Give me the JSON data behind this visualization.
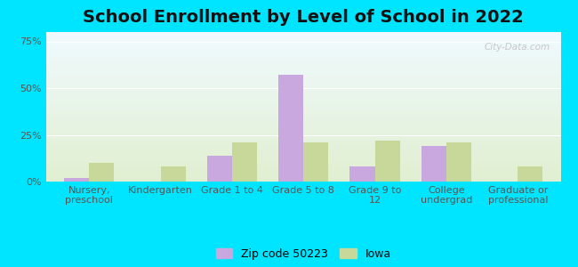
{
  "title": "School Enrollment by Level of School in 2022",
  "categories": [
    "Nursery,\npreschool",
    "Kindergarten",
    "Grade 1 to 4",
    "Grade 5 to 8",
    "Grade 9 to\n12",
    "College\nundergrad",
    "Graduate or\nprofessional"
  ],
  "zip_values": [
    2.0,
    0.0,
    14.0,
    57.0,
    8.0,
    19.0,
    0.0
  ],
  "iowa_values": [
    10.0,
    8.0,
    21.0,
    21.0,
    22.0,
    21.0,
    8.0
  ],
  "zip_color": "#c9a8e0",
  "iowa_color": "#c8d89a",
  "background_outer": "#00e5ff",
  "ylabel_ticks": [
    "0%",
    "25%",
    "50%",
    "75%"
  ],
  "yticks": [
    0,
    25,
    50,
    75
  ],
  "ylim": [
    0,
    80
  ],
  "zip_label": "Zip code 50223",
  "iowa_label": "Iowa",
  "title_fontsize": 14,
  "tick_fontsize": 8,
  "legend_fontsize": 9,
  "watermark": "City-Data.com"
}
